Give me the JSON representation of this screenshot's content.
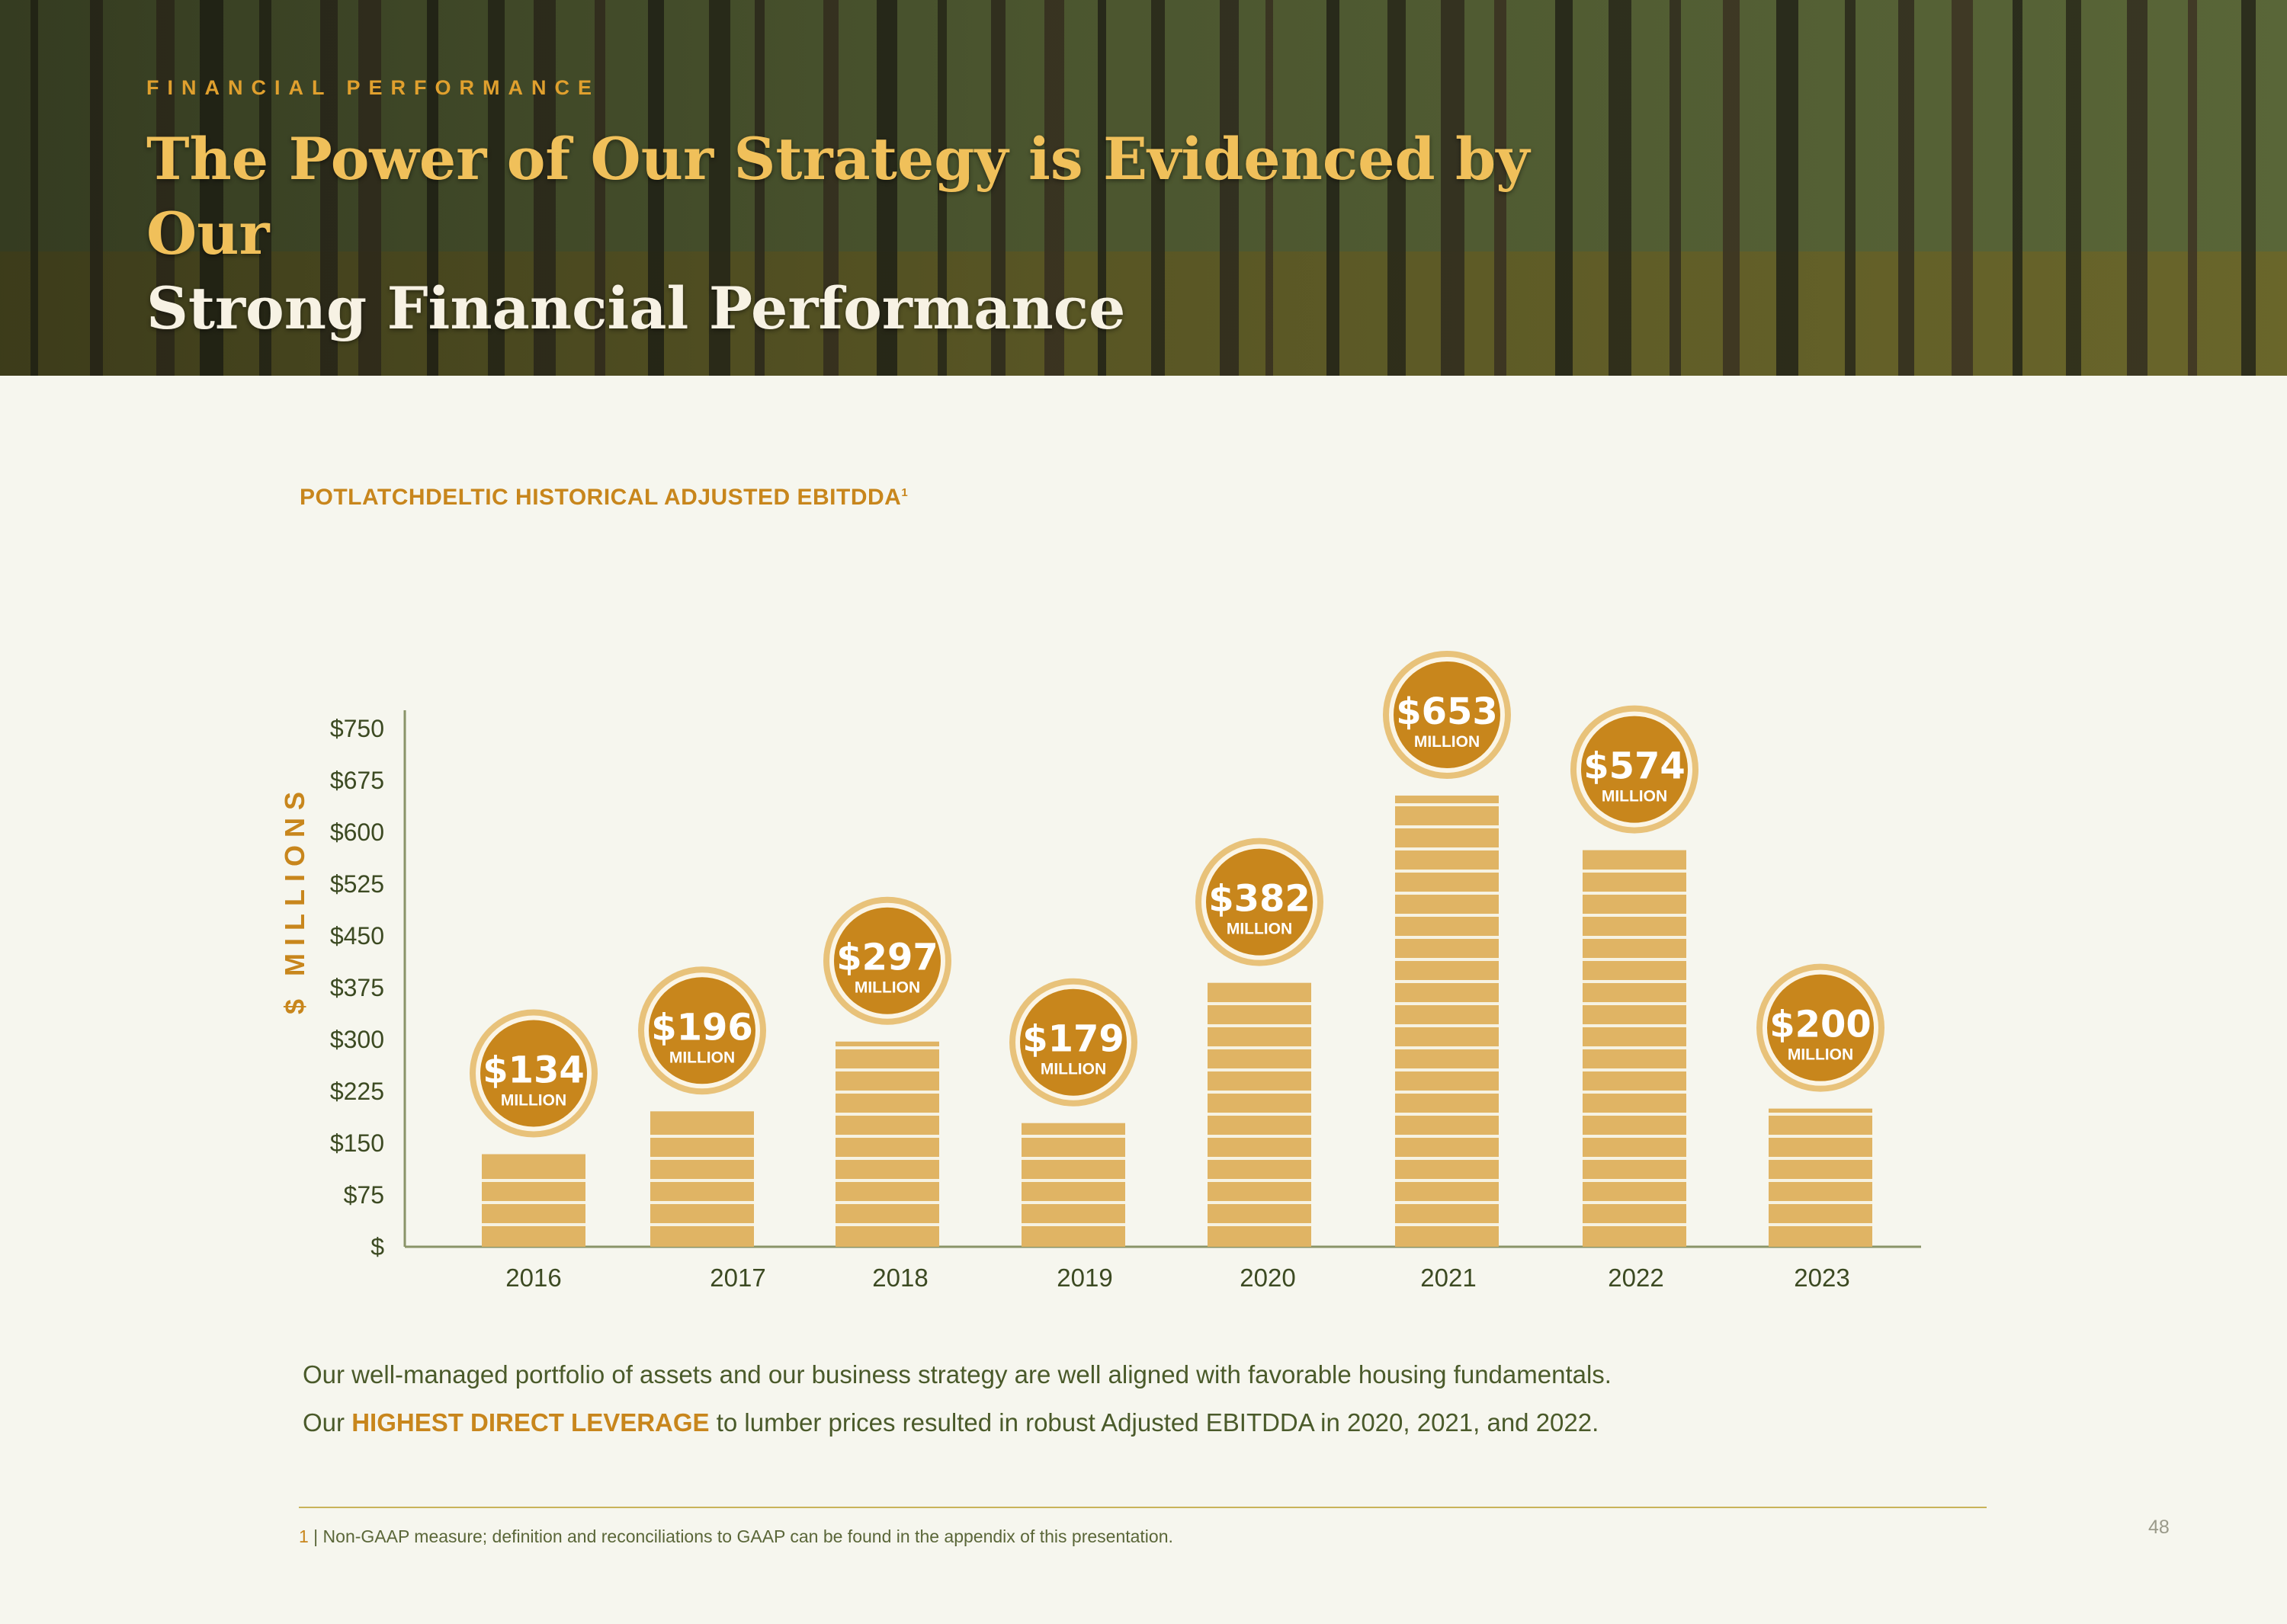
{
  "hero": {
    "kicker": "FINANCIAL PERFORMANCE",
    "title_line1": "The Power of Our Strategy is Evidenced by Our",
    "title_line2": "Strong Financial Performance"
  },
  "colors": {
    "accent": "#c8861c",
    "bar": "#e0b464",
    "badge": "#c8861c",
    "badge_ring": "#e8c27a",
    "text_green": "#4a5a2a",
    "background": "#f6f6ee"
  },
  "chart_data": {
    "type": "bar",
    "title": "POTLATCHDELTIC HISTORICAL ADJUSTED EBITDDA",
    "title_superscript": "1",
    "ylabel": "$ MILLIONS",
    "xlabel": "",
    "ylim": [
      0,
      750
    ],
    "yticks": [
      0,
      75,
      150,
      225,
      300,
      375,
      450,
      525,
      600,
      675,
      750
    ],
    "ytick_labels": [
      "$",
      "$75",
      "$150",
      "$225",
      "$300",
      "$375",
      "$450",
      "$525",
      "$600",
      "$675",
      "$750"
    ],
    "categories": [
      "2016",
      "2017",
      "2018",
      "2019",
      "2020",
      "2021",
      "2022",
      "2023"
    ],
    "values": [
      134,
      196,
      297,
      179,
      382,
      653,
      574,
      200
    ],
    "data_labels": [
      "$134",
      "$196",
      "$297",
      "$179",
      "$382",
      "$653",
      "$574",
      "$200"
    ],
    "data_label_unit": "MILLION",
    "grid": false,
    "legend": "none"
  },
  "body": {
    "line1": "Our well-managed portfolio of assets and our business strategy are well aligned with favorable housing fundamentals.",
    "line2_pre": "Our ",
    "line2_highlight": "HIGHEST DIRECT LEVERAGE",
    "line2_post": " to lumber prices resulted in robust Adjusted EBITDDA in 2020, 2021, and 2022."
  },
  "footnote": {
    "number": "1",
    "text": " | Non-GAAP measure; definition and reconciliations to GAAP can be found in the appendix of this presentation."
  },
  "page_number": "48"
}
